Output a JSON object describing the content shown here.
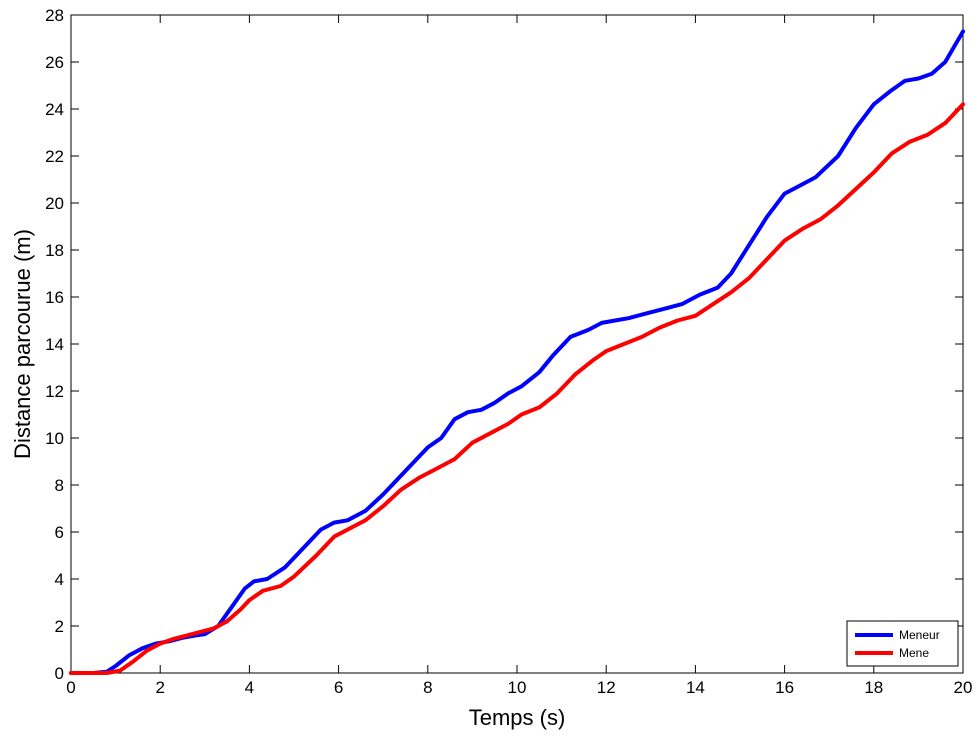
{
  "chart_data": {
    "type": "line",
    "xlabel": "Temps (s)",
    "ylabel": "Distance parcourue (m)",
    "xlim": [
      0,
      20
    ],
    "ylim": [
      0,
      28
    ],
    "x_ticks": [
      0,
      2,
      4,
      6,
      8,
      10,
      12,
      14,
      16,
      18,
      20
    ],
    "y_ticks": [
      0,
      2,
      4,
      6,
      8,
      10,
      12,
      14,
      16,
      18,
      20,
      22,
      24,
      26,
      28
    ],
    "grid": false,
    "legend_position": "bottom-right",
    "series": [
      {
        "name": "Meneur",
        "color": "#0000ff",
        "points": [
          [
            0,
            0
          ],
          [
            0.5,
            0
          ],
          [
            0.8,
            0.05
          ],
          [
            1.0,
            0.3
          ],
          [
            1.3,
            0.75
          ],
          [
            1.6,
            1.05
          ],
          [
            1.9,
            1.25
          ],
          [
            2.2,
            1.35
          ],
          [
            2.5,
            1.5
          ],
          [
            2.8,
            1.6
          ],
          [
            3.0,
            1.65
          ],
          [
            3.3,
            2.0
          ],
          [
            3.6,
            2.8
          ],
          [
            3.9,
            3.6
          ],
          [
            4.1,
            3.9
          ],
          [
            4.4,
            4.0
          ],
          [
            4.8,
            4.5
          ],
          [
            5.2,
            5.3
          ],
          [
            5.6,
            6.1
          ],
          [
            5.9,
            6.4
          ],
          [
            6.2,
            6.5
          ],
          [
            6.6,
            6.9
          ],
          [
            7.0,
            7.6
          ],
          [
            7.5,
            8.6
          ],
          [
            8.0,
            9.6
          ],
          [
            8.3,
            10.0
          ],
          [
            8.6,
            10.8
          ],
          [
            8.9,
            11.1
          ],
          [
            9.2,
            11.2
          ],
          [
            9.5,
            11.5
          ],
          [
            9.8,
            11.9
          ],
          [
            10.1,
            12.2
          ],
          [
            10.5,
            12.8
          ],
          [
            10.8,
            13.5
          ],
          [
            11.2,
            14.3
          ],
          [
            11.6,
            14.6
          ],
          [
            11.9,
            14.9
          ],
          [
            12.2,
            15.0
          ],
          [
            12.5,
            15.1
          ],
          [
            12.9,
            15.3
          ],
          [
            13.3,
            15.5
          ],
          [
            13.7,
            15.7
          ],
          [
            14.1,
            16.1
          ],
          [
            14.5,
            16.4
          ],
          [
            14.8,
            17.0
          ],
          [
            15.2,
            18.2
          ],
          [
            15.6,
            19.4
          ],
          [
            16.0,
            20.4
          ],
          [
            16.3,
            20.7
          ],
          [
            16.7,
            21.1
          ],
          [
            17.2,
            22.0
          ],
          [
            17.6,
            23.2
          ],
          [
            18.0,
            24.2
          ],
          [
            18.4,
            24.8
          ],
          [
            18.7,
            25.2
          ],
          [
            19.0,
            25.3
          ],
          [
            19.3,
            25.5
          ],
          [
            19.6,
            26.0
          ],
          [
            20.0,
            27.3
          ]
        ]
      },
      {
        "name": "Mene",
        "color": "#ff0000",
        "points": [
          [
            0,
            0
          ],
          [
            0.8,
            0
          ],
          [
            1.1,
            0.1
          ],
          [
            1.4,
            0.5
          ],
          [
            1.7,
            0.95
          ],
          [
            2.0,
            1.25
          ],
          [
            2.3,
            1.45
          ],
          [
            2.6,
            1.6
          ],
          [
            2.9,
            1.75
          ],
          [
            3.2,
            1.9
          ],
          [
            3.5,
            2.2
          ],
          [
            3.8,
            2.7
          ],
          [
            4.0,
            3.1
          ],
          [
            4.3,
            3.5
          ],
          [
            4.7,
            3.7
          ],
          [
            5.0,
            4.1
          ],
          [
            5.5,
            5.0
          ],
          [
            5.9,
            5.8
          ],
          [
            6.2,
            6.1
          ],
          [
            6.6,
            6.5
          ],
          [
            7.0,
            7.1
          ],
          [
            7.4,
            7.8
          ],
          [
            7.8,
            8.3
          ],
          [
            8.2,
            8.7
          ],
          [
            8.6,
            9.1
          ],
          [
            9.0,
            9.8
          ],
          [
            9.4,
            10.2
          ],
          [
            9.8,
            10.6
          ],
          [
            10.1,
            11.0
          ],
          [
            10.5,
            11.3
          ],
          [
            10.9,
            11.9
          ],
          [
            11.3,
            12.7
          ],
          [
            11.7,
            13.3
          ],
          [
            12.0,
            13.7
          ],
          [
            12.4,
            14.0
          ],
          [
            12.8,
            14.3
          ],
          [
            13.2,
            14.7
          ],
          [
            13.6,
            15.0
          ],
          [
            14.0,
            15.2
          ],
          [
            14.4,
            15.7
          ],
          [
            14.8,
            16.2
          ],
          [
            15.2,
            16.8
          ],
          [
            15.6,
            17.6
          ],
          [
            16.0,
            18.4
          ],
          [
            16.4,
            18.9
          ],
          [
            16.8,
            19.3
          ],
          [
            17.2,
            19.9
          ],
          [
            17.6,
            20.6
          ],
          [
            18.0,
            21.3
          ],
          [
            18.4,
            22.1
          ],
          [
            18.8,
            22.6
          ],
          [
            19.2,
            22.9
          ],
          [
            19.6,
            23.4
          ],
          [
            20.0,
            24.2
          ]
        ]
      }
    ]
  }
}
